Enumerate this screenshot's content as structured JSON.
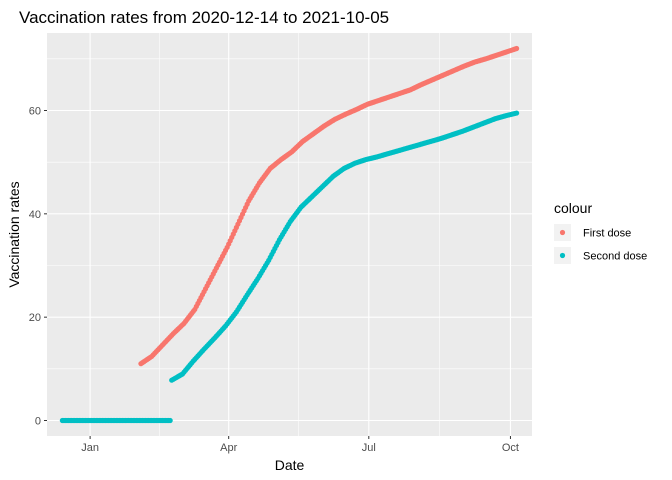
{
  "chart_data": {
    "type": "scatter",
    "title": "Vaccination rates from 2020-12-14 to 2021-10-05",
    "xlabel": "Date",
    "ylabel": "Vaccination rates",
    "x_ticks": [
      {
        "date": "2021-01-01",
        "label": "Jan"
      },
      {
        "date": "2021-04-01",
        "label": "Apr"
      },
      {
        "date": "2021-07-01",
        "label": "Jul"
      },
      {
        "date": "2021-10-01",
        "label": "Oct"
      }
    ],
    "y_ticks": [
      0,
      20,
      40,
      60
    ],
    "xlim": [
      "2020-12-04",
      "2021-10-15"
    ],
    "ylim": [
      -3,
      75
    ],
    "grid": true,
    "legend_title": "colour",
    "legend_position": "right",
    "series": [
      {
        "name": "First dose",
        "color": "#F8766D",
        "points": [
          [
            "2021-02-03",
            11.0
          ],
          [
            "2021-02-10",
            12.4
          ],
          [
            "2021-02-17",
            14.6
          ],
          [
            "2021-02-24",
            16.8
          ],
          [
            "2021-03-03",
            18.8
          ],
          [
            "2021-03-10",
            21.5
          ],
          [
            "2021-03-17",
            25.5
          ],
          [
            "2021-03-24",
            29.5
          ],
          [
            "2021-03-31",
            33.5
          ],
          [
            "2021-04-07",
            38.0
          ],
          [
            "2021-04-14",
            42.5
          ],
          [
            "2021-04-21",
            46.0
          ],
          [
            "2021-04-28",
            48.8
          ],
          [
            "2021-05-05",
            50.5
          ],
          [
            "2021-05-12",
            52.0
          ],
          [
            "2021-05-19",
            54.0
          ],
          [
            "2021-05-26",
            55.5
          ],
          [
            "2021-06-02",
            57.0
          ],
          [
            "2021-06-09",
            58.3
          ],
          [
            "2021-06-16",
            59.3
          ],
          [
            "2021-06-23",
            60.2
          ],
          [
            "2021-06-30",
            61.2
          ],
          [
            "2021-07-07",
            61.9
          ],
          [
            "2021-07-14",
            62.6
          ],
          [
            "2021-07-21",
            63.3
          ],
          [
            "2021-07-28",
            64.0
          ],
          [
            "2021-08-04",
            65.0
          ],
          [
            "2021-08-11",
            65.9
          ],
          [
            "2021-08-18",
            66.8
          ],
          [
            "2021-08-25",
            67.7
          ],
          [
            "2021-09-01",
            68.6
          ],
          [
            "2021-09-08",
            69.4
          ],
          [
            "2021-09-15",
            70.0
          ],
          [
            "2021-09-22",
            70.7
          ],
          [
            "2021-09-29",
            71.4
          ],
          [
            "2021-10-05",
            72.0
          ]
        ]
      },
      {
        "name": "Second dose",
        "color": "#00BFC4",
        "points": [
          [
            "2020-12-14",
            0
          ],
          [
            "2020-12-21",
            0
          ],
          [
            "2020-12-28",
            0
          ],
          [
            "2021-01-04",
            0
          ],
          [
            "2021-01-11",
            0
          ],
          [
            "2021-01-18",
            0
          ],
          [
            "2021-01-25",
            0
          ],
          [
            "2021-02-01",
            0
          ],
          [
            "2021-02-08",
            0
          ],
          [
            "2021-02-15",
            0
          ],
          [
            "2021-02-22",
            0
          ],
          [
            "2021-02-23",
            7.8
          ],
          [
            "2021-03-02",
            9.0
          ],
          [
            "2021-03-09",
            11.5
          ],
          [
            "2021-03-16",
            13.8
          ],
          [
            "2021-03-23",
            16.0
          ],
          [
            "2021-03-30",
            18.3
          ],
          [
            "2021-04-06",
            21.0
          ],
          [
            "2021-04-13",
            24.3
          ],
          [
            "2021-04-20",
            27.5
          ],
          [
            "2021-04-27",
            31.0
          ],
          [
            "2021-05-04",
            35.0
          ],
          [
            "2021-05-11",
            38.5
          ],
          [
            "2021-05-18",
            41.3
          ],
          [
            "2021-05-25",
            43.3
          ],
          [
            "2021-06-01",
            45.3
          ],
          [
            "2021-06-08",
            47.3
          ],
          [
            "2021-06-15",
            48.8
          ],
          [
            "2021-06-22",
            49.8
          ],
          [
            "2021-06-29",
            50.5
          ],
          [
            "2021-07-06",
            51.0
          ],
          [
            "2021-07-13",
            51.6
          ],
          [
            "2021-07-20",
            52.2
          ],
          [
            "2021-07-27",
            52.8
          ],
          [
            "2021-08-03",
            53.4
          ],
          [
            "2021-08-10",
            54.0
          ],
          [
            "2021-08-17",
            54.6
          ],
          [
            "2021-08-24",
            55.3
          ],
          [
            "2021-08-31",
            56.0
          ],
          [
            "2021-09-07",
            56.8
          ],
          [
            "2021-09-14",
            57.6
          ],
          [
            "2021-09-21",
            58.4
          ],
          [
            "2021-09-28",
            59.0
          ],
          [
            "2021-10-05",
            59.5
          ]
        ]
      }
    ]
  }
}
